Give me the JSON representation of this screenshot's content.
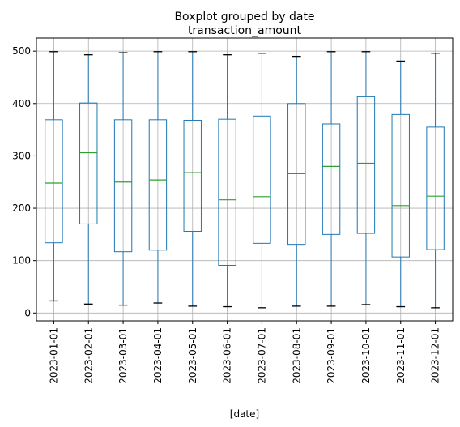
{
  "chart_data": {
    "type": "boxplot",
    "suptitle": "Boxplot grouped by date",
    "title": "transaction_amount",
    "xlabel": "[date]",
    "ylabel": "",
    "ylim": [
      -15,
      525
    ],
    "yticks": [
      0,
      100,
      200,
      300,
      400,
      500
    ],
    "grid": true,
    "colors": {
      "box": "#1f77b4",
      "median": "#2ca02c",
      "whisker_cap": "#000000",
      "grid": "#b0b0b0"
    },
    "categories": [
      "2023-01-01",
      "2023-02-01",
      "2023-03-01",
      "2023-04-01",
      "2023-05-01",
      "2023-06-01",
      "2023-07-01",
      "2023-08-01",
      "2023-09-01",
      "2023-10-01",
      "2023-11-01",
      "2023-12-01"
    ],
    "boxes": [
      {
        "whislo": 23,
        "q1": 134,
        "med": 248,
        "q3": 369,
        "whishi": 499
      },
      {
        "whislo": 17,
        "q1": 170,
        "med": 306,
        "q3": 401,
        "whishi": 493
      },
      {
        "whislo": 15,
        "q1": 117,
        "med": 250,
        "q3": 369,
        "whishi": 497
      },
      {
        "whislo": 19,
        "q1": 120,
        "med": 254,
        "q3": 369,
        "whishi": 499
      },
      {
        "whislo": 13,
        "q1": 156,
        "med": 268,
        "q3": 368,
        "whishi": 499
      },
      {
        "whislo": 12,
        "q1": 91,
        "med": 216,
        "q3": 370,
        "whishi": 493
      },
      {
        "whislo": 10,
        "q1": 133,
        "med": 222,
        "q3": 376,
        "whishi": 496
      },
      {
        "whislo": 13,
        "q1": 131,
        "med": 266,
        "q3": 400,
        "whishi": 490
      },
      {
        "whislo": 13,
        "q1": 150,
        "med": 280,
        "q3": 361,
        "whishi": 499
      },
      {
        "whislo": 16,
        "q1": 152,
        "med": 286,
        "q3": 413,
        "whishi": 499
      },
      {
        "whislo": 12,
        "q1": 107,
        "med": 205,
        "q3": 379,
        "whishi": 481
      },
      {
        "whislo": 10,
        "q1": 121,
        "med": 223,
        "q3": 355,
        "whishi": 496
      }
    ]
  }
}
